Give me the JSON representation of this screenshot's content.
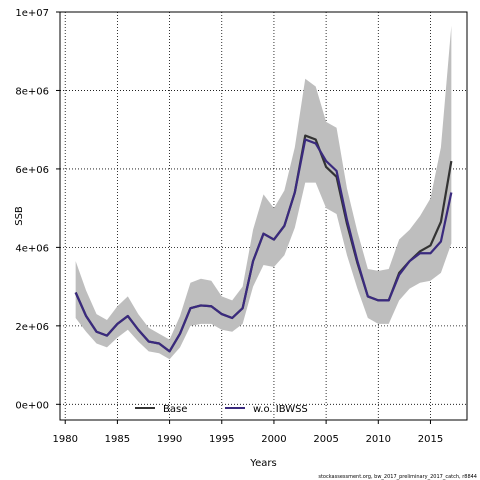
{
  "chart_data": {
    "type": "line",
    "xlabel": "Years",
    "ylabel": "SSB",
    "xlim": [
      1979.5,
      2018.5
    ],
    "ylim": [
      -400000,
      10000000
    ],
    "xticks": [
      1980,
      1985,
      1990,
      1995,
      2000,
      2005,
      2010,
      2015
    ],
    "xtick_labels": [
      "1980",
      "1985",
      "1990",
      "1995",
      "2000",
      "2005",
      "2010",
      "2015"
    ],
    "yticks": [
      0,
      2000000,
      4000000,
      6000000,
      8000000,
      10000000
    ],
    "ytick_labels": [
      "0e+00",
      "2e+06",
      "4e+06",
      "6e+06",
      "8e+06",
      "1e+07"
    ],
    "grid": true,
    "legend_position": "bottom-left",
    "x": [
      1981,
      1982,
      1983,
      1984,
      1985,
      1986,
      1987,
      1988,
      1989,
      1990,
      1991,
      1992,
      1993,
      1994,
      1995,
      1996,
      1997,
      1998,
      1999,
      2000,
      2001,
      2002,
      2003,
      2004,
      2005,
      2006,
      2007,
      2008,
      2009,
      2010,
      2011,
      2012,
      2013,
      2014,
      2015,
      2016,
      2017
    ],
    "series": [
      {
        "name": "Base",
        "color": "#333333",
        "values": [
          2850000,
          2250000,
          1850000,
          1750000,
          2050000,
          2250000,
          1900000,
          1600000,
          1550000,
          1350000,
          1800000,
          2450000,
          2520000,
          2500000,
          2300000,
          2200000,
          2450000,
          3650000,
          4350000,
          4200000,
          4550000,
          5400000,
          6850000,
          6750000,
          6050000,
          5800000,
          4600000,
          3600000,
          2750000,
          2650000,
          2650000,
          3350000,
          3650000,
          3900000,
          4050000,
          4650000,
          6200000
        ]
      },
      {
        "name": "w.o. IBWSS",
        "color": "#3a2a7e",
        "values": [
          2850000,
          2250000,
          1850000,
          1750000,
          2050000,
          2250000,
          1900000,
          1600000,
          1550000,
          1350000,
          1800000,
          2450000,
          2520000,
          2500000,
          2300000,
          2200000,
          2450000,
          3650000,
          4350000,
          4200000,
          4550000,
          5400000,
          6750000,
          6650000,
          6200000,
          5950000,
          4700000,
          3650000,
          2750000,
          2650000,
          2650000,
          3300000,
          3650000,
          3850000,
          3850000,
          4150000,
          5400000
        ]
      }
    ],
    "band": {
      "color": "#bebebe",
      "lower": [
        2200000,
        1850000,
        1550000,
        1450000,
        1700000,
        1900000,
        1600000,
        1350000,
        1300000,
        1150000,
        1450000,
        2000000,
        2050000,
        2050000,
        1900000,
        1850000,
        2050000,
        3000000,
        3550000,
        3500000,
        3800000,
        4500000,
        5650000,
        5650000,
        5000000,
        4850000,
        3800000,
        2950000,
        2200000,
        2050000,
        2050000,
        2650000,
        2950000,
        3100000,
        3150000,
        3350000,
        4100000
      ],
      "upper": [
        3650000,
        2900000,
        2300000,
        2150000,
        2500000,
        2750000,
        2300000,
        1950000,
        1800000,
        1650000,
        2250000,
        3100000,
        3200000,
        3150000,
        2750000,
        2650000,
        3000000,
        4450000,
        5350000,
        5000000,
        5450000,
        6550000,
        8300000,
        8100000,
        7200000,
        7050000,
        5500000,
        4400000,
        3450000,
        3400000,
        3450000,
        4200000,
        4450000,
        4800000,
        5250000,
        6550000,
        9650000
      ]
    }
  },
  "credit": "stockassessment.org, bw_2017_preliminary_2017_catch, r8844"
}
